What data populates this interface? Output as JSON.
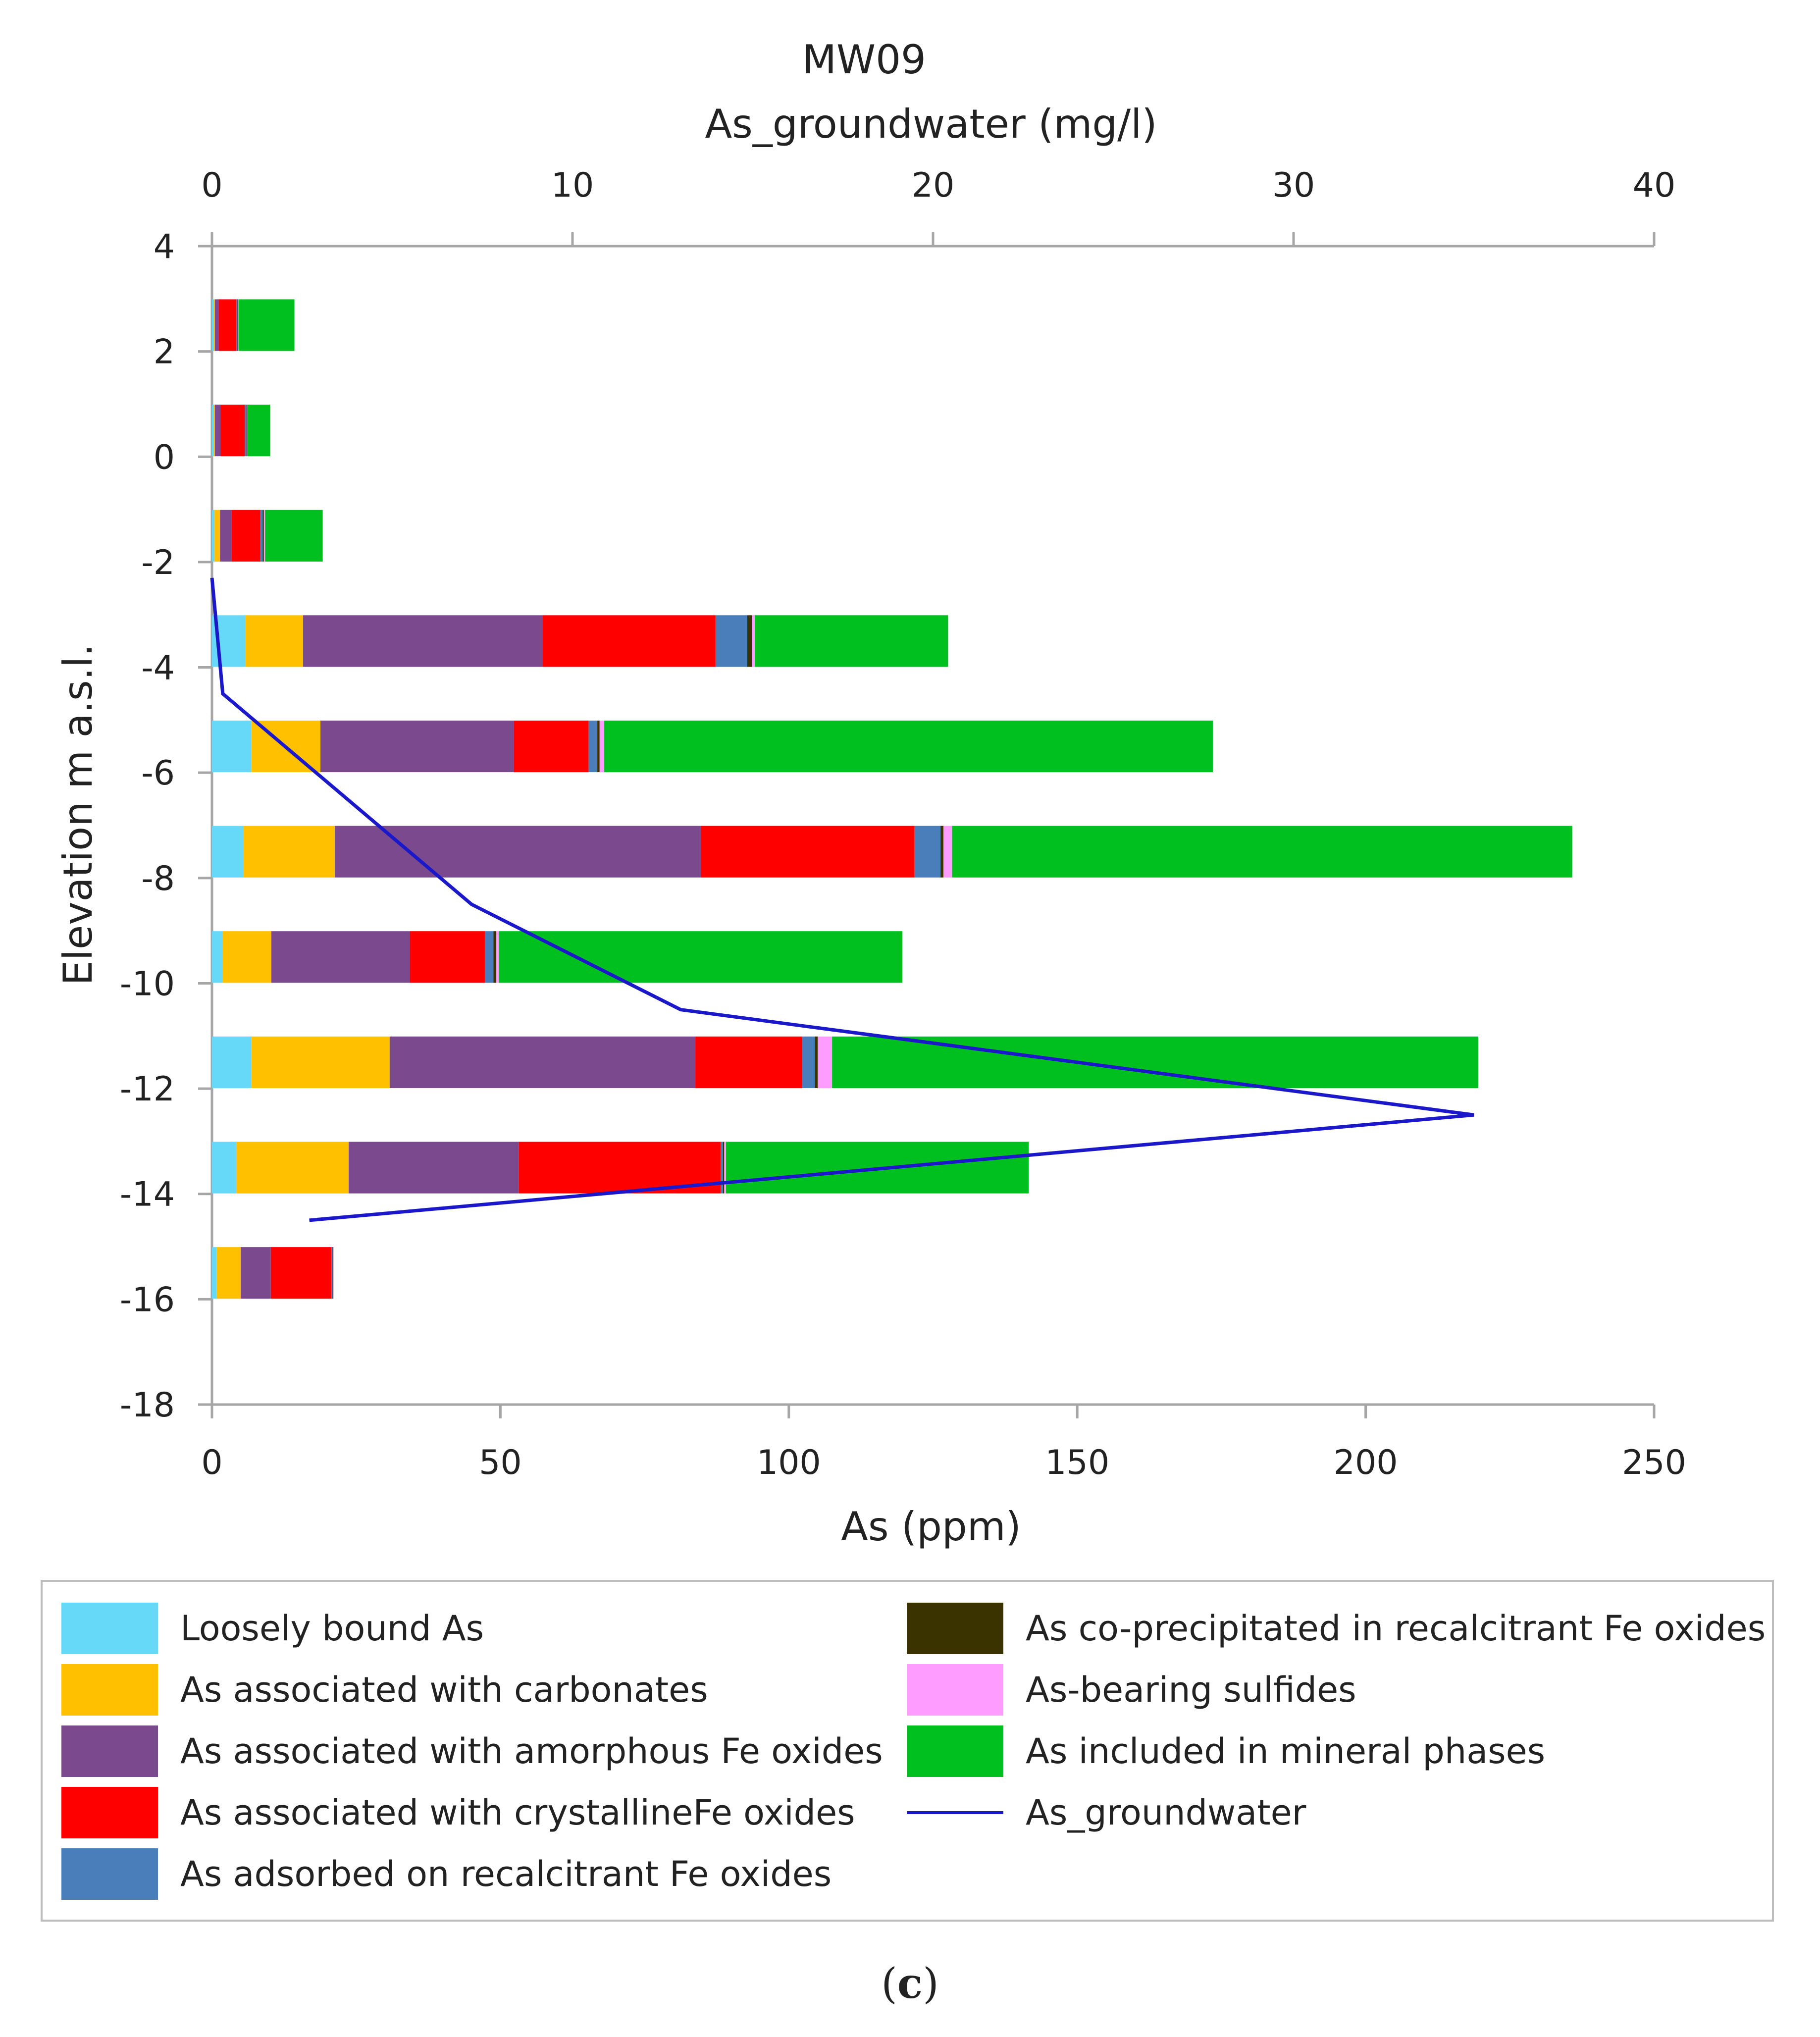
{
  "chart_data": {
    "type": "bar",
    "orientation": "horizontal-stacked",
    "title": "MW09",
    "xlabel": "As (ppm)",
    "ylabel": "Elevation m a.s.l.",
    "x2label": "As_groundwater (mg/l)",
    "xlim": [
      0,
      250
    ],
    "x2lim": [
      0,
      40
    ],
    "ylim": [
      -18,
      4
    ],
    "xticks": [
      "0",
      "50",
      "100",
      "150",
      "200",
      "250"
    ],
    "x2ticks": [
      "0",
      "10",
      "20",
      "30",
      "40"
    ],
    "yticks": [
      "4",
      "2",
      "0",
      "-2",
      "-4",
      "-6",
      "-8",
      "-10",
      "-12",
      "-14",
      "-16",
      "-18"
    ],
    "grid": false,
    "elevations": [
      2.5,
      0.5,
      -1.5,
      -3.5,
      -5.5,
      -7.5,
      -9.5,
      -11.5,
      -13.5,
      -15.5
    ],
    "series": [
      {
        "name": "Loosely bound As",
        "color": "#66d8f8",
        "values": [
          0.3,
          0.3,
          0.4,
          5.8,
          6.8,
          5.5,
          1.8,
          6.8,
          4.2,
          0.8
        ]
      },
      {
        "name": "As associated with carbonates",
        "color": "#ffc000",
        "values": [
          0.2,
          0.2,
          1.0,
          10.0,
          12.0,
          15.8,
          8.5,
          24.0,
          19.5,
          4.2
        ]
      },
      {
        "name": "As associated with amorphous Fe oxides",
        "color": "#7b4a8e",
        "values": [
          0.7,
          1.0,
          2.0,
          41.5,
          33.5,
          63.5,
          24.0,
          53.0,
          29.5,
          5.2
        ]
      },
      {
        "name": "As associated with crystallineFe oxides",
        "color": "#ff0000",
        "values": [
          3.0,
          4.2,
          5.0,
          30.0,
          13.0,
          37.0,
          13.0,
          18.5,
          35.0,
          10.5
        ]
      },
      {
        "name": "As adsorbed on recalcitrant Fe oxides",
        "color": "#4a7ebb",
        "values": [
          0.2,
          0.2,
          0.4,
          5.5,
          1.5,
          4.5,
          1.5,
          2.2,
          0.4,
          0.2
        ]
      },
      {
        "name": "As co-precipitated in recalcitrant Fe oxides",
        "color": "#3a3300",
        "values": [
          0.1,
          0.1,
          0.2,
          0.8,
          0.4,
          0.5,
          0.5,
          0.5,
          0.2,
          0.1
        ]
      },
      {
        "name": "As-bearing sulfides",
        "color": "#ff9cff",
        "values": [
          0.1,
          0.1,
          0.2,
          0.5,
          0.8,
          1.5,
          0.4,
          2.5,
          0.3,
          0.1
        ]
      },
      {
        "name": "As included in mineral phases",
        "color": "#00c020",
        "values": [
          9.7,
          4.0,
          10.0,
          33.5,
          105.5,
          107.5,
          70.0,
          112.0,
          52.5,
          0.0
        ]
      }
    ],
    "line_series": {
      "name": "As_groundwater",
      "color": "#1a18c8",
      "axis": "x2",
      "points": [
        {
          "x": 0.0,
          "y": -2.3
        },
        {
          "x": 0.3,
          "y": -4.5
        },
        {
          "x": 7.2,
          "y": -8.5
        },
        {
          "x": 13.0,
          "y": -10.5
        },
        {
          "x": 35.0,
          "y": -12.5
        },
        {
          "x": 2.7,
          "y": -14.5
        }
      ]
    }
  },
  "legend": {
    "items": [
      {
        "label": "Loosely bound As",
        "color": "#66d8f8",
        "kind": "swatch"
      },
      {
        "label": "As associated with carbonates",
        "color": "#ffc000",
        "kind": "swatch"
      },
      {
        "label": "As associated with amorphous Fe oxides",
        "color": "#7b4a8e",
        "kind": "swatch"
      },
      {
        "label": "As associated with crystallineFe oxides",
        "color": "#ff0000",
        "kind": "swatch"
      },
      {
        "label": "As adsorbed on recalcitrant Fe oxides",
        "color": "#4a7ebb",
        "kind": "swatch"
      },
      {
        "label": "As co-precipitated in recalcitrant Fe oxides",
        "color": "#3a3300",
        "kind": "swatch"
      },
      {
        "label": "As-bearing sulfides",
        "color": "#ff9cff",
        "kind": "swatch"
      },
      {
        "label": "As included in mineral phases",
        "color": "#00c020",
        "kind": "swatch"
      },
      {
        "label": "As_groundwater",
        "color": "#1a18c8",
        "kind": "line"
      }
    ]
  },
  "caption": {
    "open": "(",
    "letter": "c",
    "close": ")"
  }
}
